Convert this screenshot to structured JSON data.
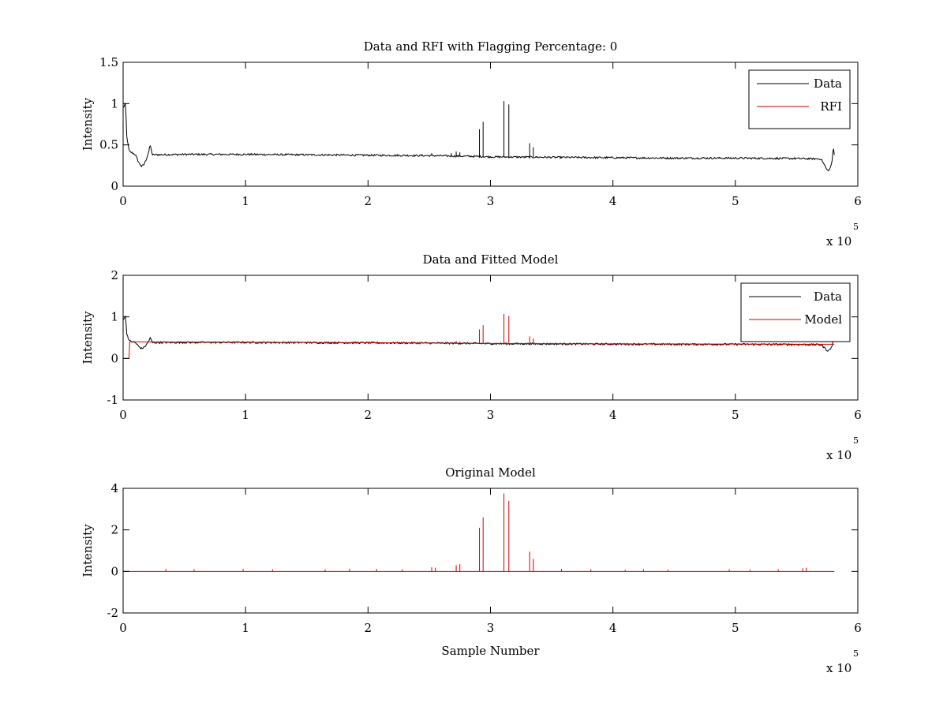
{
  "chart_data": [
    {
      "type": "line",
      "title": "Data and RFI with Flagging Percentage: 0",
      "xlabel": "",
      "ylabel": "Intensity",
      "xlim": [
        0,
        600000
      ],
      "ylim": [
        0,
        1.5
      ],
      "xticks": [
        0,
        1,
        2,
        3,
        4,
        5,
        6
      ],
      "yticks": [
        "0",
        "0.5",
        "1",
        "1.5"
      ],
      "x_exponent": {
        "base": "x 10",
        "power": "5"
      },
      "legend": {
        "position": "top-right",
        "entries": [
          "Data",
          "RFI"
        ]
      },
      "series": [
        {
          "name": "Data",
          "color": "#000000",
          "baseline": [
            [
              0,
              0.95
            ],
            [
              2000,
              1.0
            ],
            [
              3000,
              0.6
            ],
            [
              5000,
              0.42
            ],
            [
              8000,
              0.4
            ],
            [
              10000,
              0.38
            ],
            [
              13000,
              0.28
            ],
            [
              15000,
              0.24
            ],
            [
              17000,
              0.26
            ],
            [
              19000,
              0.33
            ],
            [
              21000,
              0.42
            ],
            [
              22000,
              0.5
            ],
            [
              24000,
              0.38
            ],
            [
              50000,
              0.385
            ],
            [
              100000,
              0.385
            ],
            [
              200000,
              0.375
            ],
            [
              250000,
              0.37
            ],
            [
              290000,
              0.36
            ],
            [
              300000,
              0.355
            ],
            [
              350000,
              0.35
            ],
            [
              400000,
              0.345
            ],
            [
              450000,
              0.34
            ],
            [
              500000,
              0.34
            ],
            [
              550000,
              0.335
            ],
            [
              570000,
              0.33
            ],
            [
              573000,
              0.25
            ],
            [
              575000,
              0.19
            ],
            [
              577000,
              0.2
            ],
            [
              579000,
              0.3
            ],
            [
              580000,
              0.48
            ],
            [
              581000,
              0.35
            ]
          ],
          "spikes": [
            [
              291000,
              0.69
            ],
            [
              294000,
              0.78
            ],
            [
              311000,
              1.03
            ],
            [
              315000,
              0.99
            ],
            [
              332000,
              0.52
            ],
            [
              335000,
              0.47
            ],
            [
              272000,
              0.42
            ],
            [
              275000,
              0.41
            ],
            [
              252000,
              0.4
            ],
            [
              268000,
              0.4
            ]
          ]
        },
        {
          "name": "RFI",
          "color": "#cc0000",
          "baseline": [],
          "spikes": []
        }
      ]
    },
    {
      "type": "line",
      "title": "Data and Fitted Model",
      "xlabel": "",
      "ylabel": "Intensity",
      "xlim": [
        0,
        600000
      ],
      "ylim": [
        -1,
        2
      ],
      "xticks": [
        0,
        1,
        2,
        3,
        4,
        5,
        6
      ],
      "yticks": [
        "-1",
        "0",
        "1",
        "2"
      ],
      "x_exponent": {
        "base": "x 10",
        "power": "5"
      },
      "legend": {
        "position": "top-right",
        "entries": [
          "Data",
          "Model"
        ]
      },
      "series": [
        {
          "name": "Data",
          "color": "#000000",
          "baseline": [
            [
              0,
              0.95
            ],
            [
              2000,
              1.0
            ],
            [
              3000,
              0.6
            ],
            [
              5000,
              0.42
            ],
            [
              8000,
              0.4
            ],
            [
              10000,
              0.38
            ],
            [
              13000,
              0.28
            ],
            [
              15000,
              0.24
            ],
            [
              17000,
              0.26
            ],
            [
              19000,
              0.33
            ],
            [
              21000,
              0.42
            ],
            [
              22000,
              0.5
            ],
            [
              24000,
              0.38
            ],
            [
              50000,
              0.385
            ],
            [
              100000,
              0.385
            ],
            [
              200000,
              0.375
            ],
            [
              250000,
              0.37
            ],
            [
              290000,
              0.36
            ],
            [
              300000,
              0.355
            ],
            [
              350000,
              0.35
            ],
            [
              400000,
              0.345
            ],
            [
              450000,
              0.34
            ],
            [
              500000,
              0.34
            ],
            [
              550000,
              0.335
            ],
            [
              570000,
              0.33
            ],
            [
              573000,
              0.25
            ],
            [
              575000,
              0.19
            ],
            [
              577000,
              0.2
            ],
            [
              579000,
              0.3
            ],
            [
              580000,
              0.48
            ],
            [
              581000,
              0.35
            ]
          ],
          "spikes": []
        },
        {
          "name": "Model",
          "color": "#cc0000",
          "baseline": [
            [
              0,
              0.0
            ],
            [
              5000,
              0.0
            ],
            [
              5000,
              0.4
            ],
            [
              100000,
              0.39
            ],
            [
              200000,
              0.38
            ],
            [
              300000,
              0.36
            ],
            [
              400000,
              0.35
            ],
            [
              500000,
              0.345
            ],
            [
              581000,
              0.34
            ]
          ],
          "spikes": [
            [
              291000,
              0.7
            ],
            [
              294000,
              0.8
            ],
            [
              311000,
              1.07
            ],
            [
              315000,
              1.02
            ],
            [
              332000,
              0.53
            ],
            [
              335000,
              0.48
            ],
            [
              272000,
              0.42
            ],
            [
              275000,
              0.41
            ]
          ]
        }
      ]
    },
    {
      "type": "line",
      "title": "Original Model",
      "xlabel": "Sample Number",
      "ylabel": "Intensity",
      "xlim": [
        0,
        600000
      ],
      "ylim": [
        -2,
        4
      ],
      "xticks": [
        0,
        1,
        2,
        3,
        4,
        5,
        6
      ],
      "yticks": [
        "-2",
        "0",
        "2",
        "4"
      ],
      "x_exponent": {
        "base": "x 10",
        "power": "5"
      },
      "legend": null,
      "series": [
        {
          "name": "",
          "color": "#cc0000",
          "baseline": [
            [
              0,
              0.0
            ],
            [
              581000,
              0.0
            ]
          ],
          "spikes": [
            [
              291000,
              2.1
            ],
            [
              294000,
              2.6
            ],
            [
              311000,
              3.75
            ],
            [
              315000,
              3.4
            ],
            [
              332000,
              0.95
            ],
            [
              335000,
              0.6
            ],
            [
              272000,
              0.3
            ],
            [
              275000,
              0.35
            ],
            [
              252000,
              0.2
            ],
            [
              255000,
              0.18
            ],
            [
              35000,
              0.12
            ],
            [
              58000,
              0.1
            ],
            [
              98000,
              0.12
            ],
            [
              122000,
              0.1
            ],
            [
              165000,
              0.1
            ],
            [
              185000,
              0.12
            ],
            [
              207000,
              0.12
            ],
            [
              228000,
              0.1
            ],
            [
              358000,
              0.12
            ],
            [
              382000,
              0.1
            ],
            [
              410000,
              0.08
            ],
            [
              425000,
              0.1
            ],
            [
              445000,
              0.08
            ],
            [
              495000,
              0.1
            ],
            [
              512000,
              0.08
            ],
            [
              535000,
              0.1
            ],
            [
              555000,
              0.15
            ],
            [
              558000,
              0.18
            ]
          ]
        }
      ]
    }
  ]
}
